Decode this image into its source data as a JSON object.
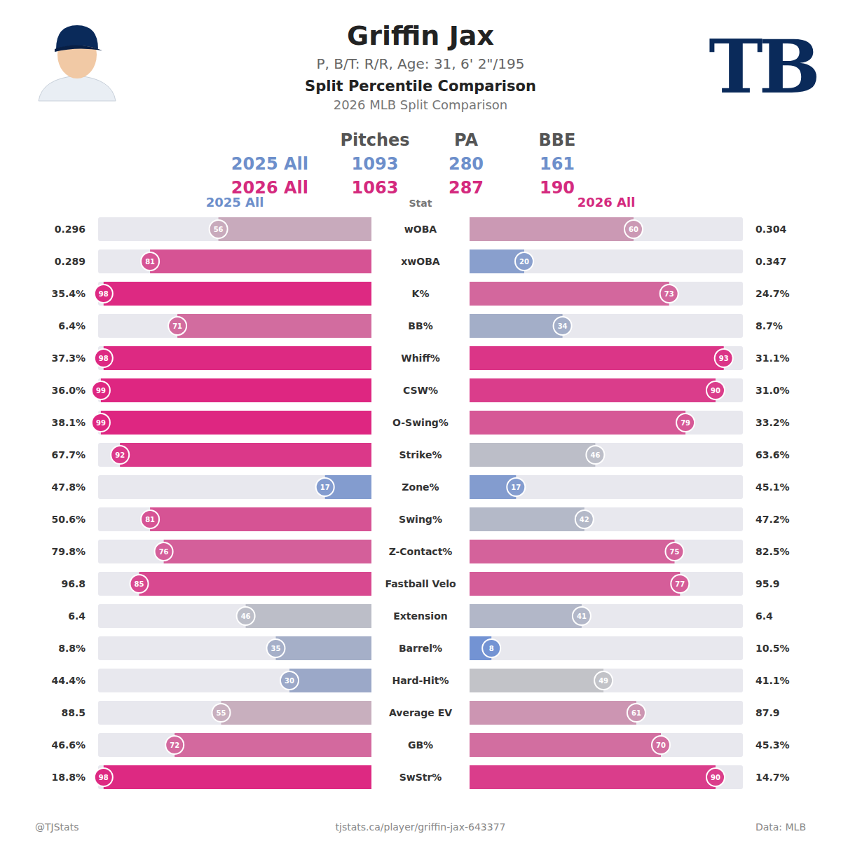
{
  "header": {
    "title": "Griffin Jax",
    "subtitle": "P, B/T: R/R, Age: 31, 6' 2\"/195",
    "heading": "Split Percentile Comparison",
    "subheading": "2026 MLB Split Comparison",
    "logo": "TB"
  },
  "summary": {
    "columns": [
      "Pitches",
      "PA",
      "BBE"
    ],
    "rows": [
      {
        "label": "2025 All",
        "values": [
          1093,
          280,
          161
        ]
      },
      {
        "label": "2026 All",
        "values": [
          1063,
          287,
          190
        ]
      }
    ]
  },
  "chart_data": {
    "type": "bar",
    "orientation": "horizontal",
    "data_labels": true,
    "tick_labels": false,
    "xlim": [
      0,
      100
    ],
    "ylabel": "Stat",
    "categories": [
      "wOBA",
      "xwOBA",
      "K%",
      "BB%",
      "Whiff%",
      "CSW%",
      "O-Swing%",
      "Strike%",
      "Zone%",
      "Swing%",
      "Z-Contact%",
      "Fastball Velo",
      "Extension",
      "Barrel%",
      "Hard-Hit%",
      "Average EV",
      "GB%",
      "SwStr%"
    ],
    "series": [
      {
        "name": "2025 All",
        "color": "#6d8fcb",
        "values": [
          56,
          81,
          98,
          71,
          98,
          99,
          99,
          92,
          17,
          81,
          76,
          85,
          46,
          35,
          30,
          55,
          72,
          98
        ],
        "stat_labels": [
          "0.296",
          "0.289",
          "35.4%",
          "6.4%",
          "37.3%",
          "36.0%",
          "38.1%",
          "67.7%",
          "47.8%",
          "50.6%",
          "79.8%",
          "96.8",
          "6.4",
          "8.8%",
          "44.4%",
          "88.5",
          "46.6%",
          "18.8%"
        ]
      },
      {
        "name": "2026 All",
        "color": "#d42a7e",
        "values": [
          60,
          20,
          73,
          34,
          93,
          90,
          79,
          46,
          17,
          42,
          75,
          77,
          41,
          8,
          49,
          61,
          70,
          90
        ],
        "stat_labels": [
          "0.304",
          "0.347",
          "24.7%",
          "8.7%",
          "31.1%",
          "31.0%",
          "33.2%",
          "63.6%",
          "45.1%",
          "47.2%",
          "82.5%",
          "95.9",
          "6.4",
          "10.5%",
          "41.1%",
          "87.9",
          "45.3%",
          "14.7%"
        ]
      }
    ]
  },
  "footer": {
    "left": "@TJStats",
    "center": "tjstats.ca/player/griffin-jax-643377",
    "right": "Data: MLB"
  }
}
